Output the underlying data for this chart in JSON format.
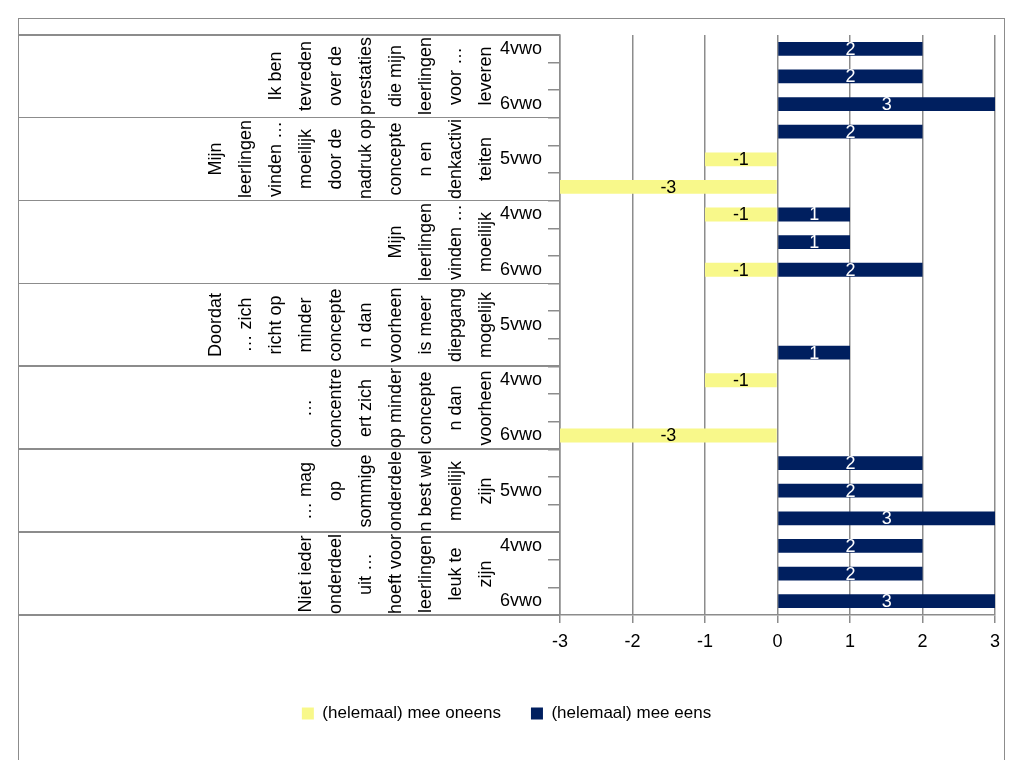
{
  "chart_data": {
    "type": "bar",
    "orientation": "horizontal",
    "stacked": true,
    "categories": [
      "4vwo",
      null,
      "6vwo",
      null,
      "5vwo",
      null,
      "4vwo",
      null,
      "6vwo",
      null,
      "5vwo",
      null,
      "4vwo",
      null,
      "6vwo",
      null,
      "5vwo",
      null,
      "4vwo",
      null,
      "6vwo"
    ],
    "series": [
      {
        "name": "(helemaal) mee oneens",
        "color": "#f8f88a",
        "values": [
          null,
          null,
          null,
          null,
          -1,
          -3,
          -1,
          null,
          -1,
          null,
          null,
          null,
          -1,
          null,
          -3,
          null,
          null,
          null,
          null,
          null,
          null
        ]
      },
      {
        "name": "(helemaal) mee eens",
        "color": "#001f5f",
        "values": [
          2,
          2,
          3,
          2,
          null,
          null,
          1,
          1,
          2,
          null,
          null,
          1,
          null,
          null,
          null,
          2,
          2,
          3,
          2,
          2,
          3
        ]
      }
    ],
    "annotations": [
      "Ik ben tevreden over de prestaties die mijn leerlingen voor … leveren",
      "Mijn leerlingen vinden … moeilijk door de nadruk op concepten en denkactiviteiten",
      "Mijn leerlingen vinden … moeilijk",
      "Doordat … zich richt op minder concepten dan voorheen is meer diepgang mogelijk",
      "… concentreert zich op minder concepten dan voorheen",
      "… mag op sommige onderdelen best wel moeilijk zijn",
      "Niet ieder onderdeel uit … hoeft voor leerlingen leuk te zijn"
    ],
    "xlim": [
      -3,
      3
    ],
    "xticks": [
      -3,
      -2,
      -1,
      0,
      1,
      2,
      3
    ],
    "grid": "x",
    "legend": "bottom",
    "data_labels": true
  }
}
